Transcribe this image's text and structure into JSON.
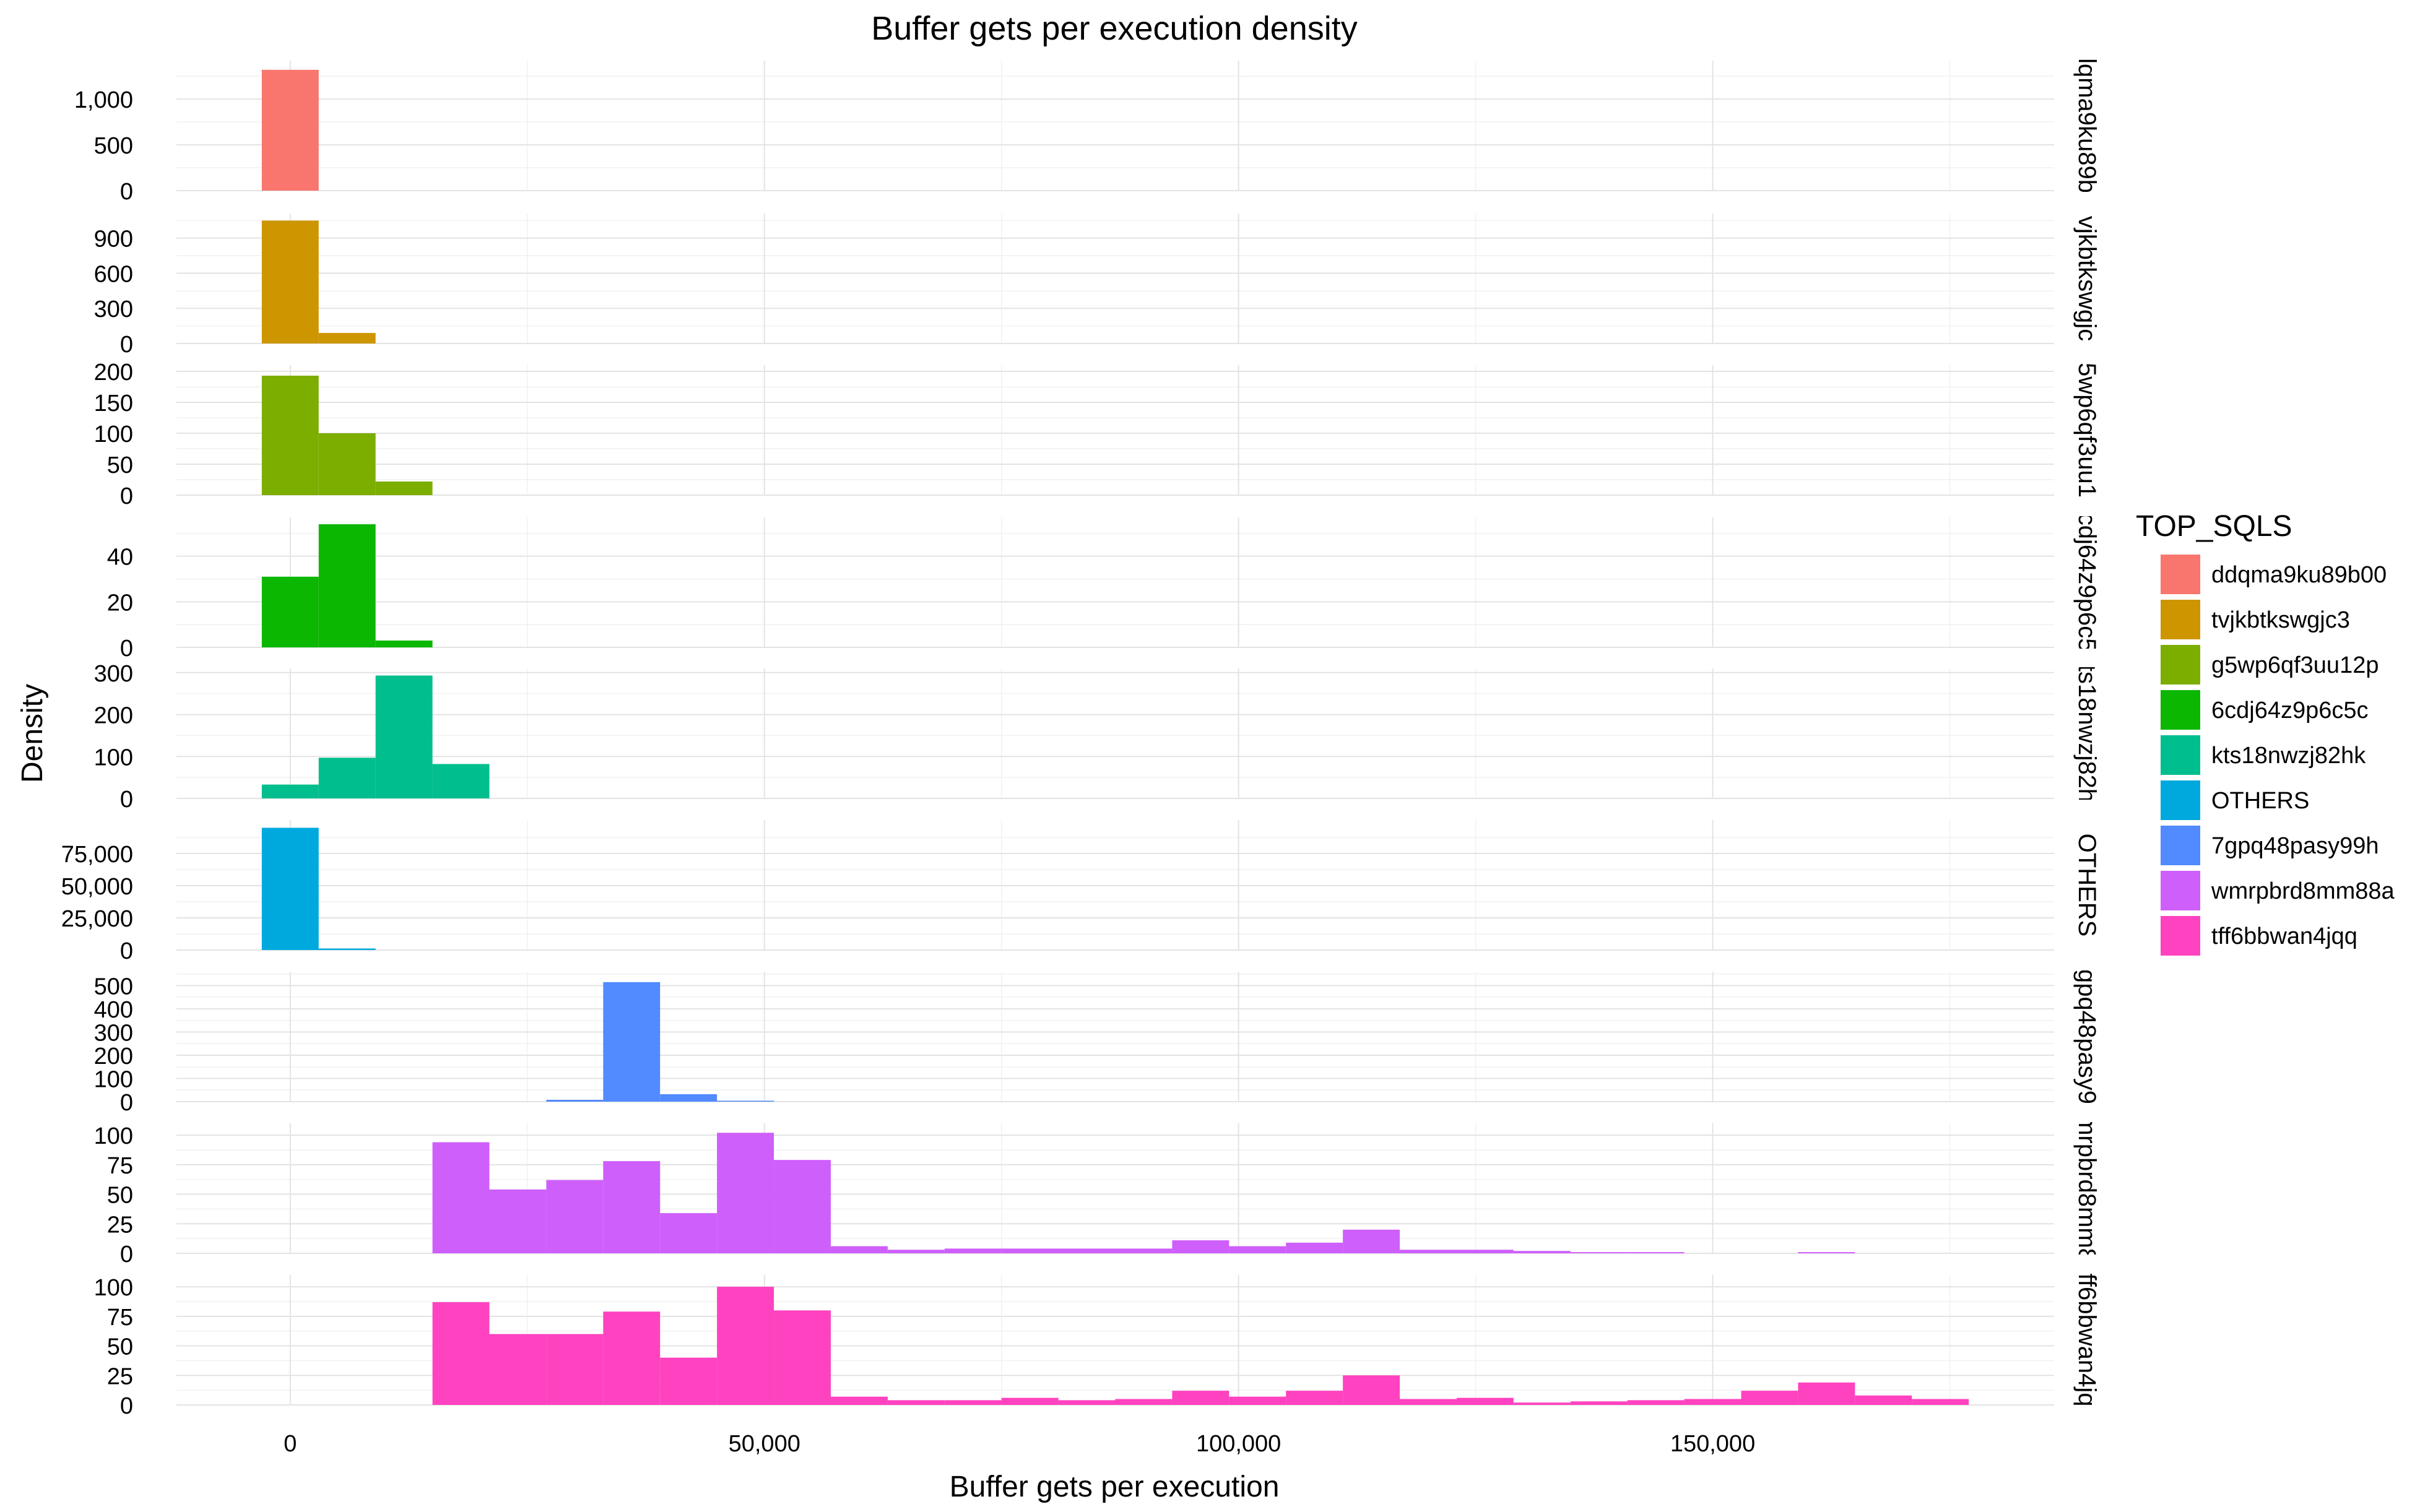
{
  "chart_data": {
    "type": "bar",
    "title": "Buffer gets per execution density",
    "xlabel": "Buffer gets per execution",
    "ylabel": "Density",
    "legend_title": "TOP_SQLS",
    "legend_position": "right",
    "grid": true,
    "bin_width": 6000,
    "x_range": [
      -12000,
      186000
    ],
    "x_ticks": [
      0,
      50000,
      100000,
      150000
    ],
    "x_tick_labels": [
      "0",
      "50,000",
      "100,000",
      "150,000"
    ],
    "series": [
      {
        "name": "ddqma9ku89b00",
        "strip_label": "lqma9ku89b",
        "color": "#F8766D",
        "ylim": [
          0,
          1420
        ],
        "y_ticks": [
          0,
          500,
          1000
        ],
        "y_tick_labels": [
          "0",
          "500",
          "1,000"
        ],
        "bins": [
          [
            -3000,
            1320
          ]
        ]
      },
      {
        "name": "tvjkbtkswgjc3",
        "strip_label": "vjkbtkswgjc",
        "color": "#CD9600",
        "ylim": [
          0,
          1110
        ],
        "y_ticks": [
          0,
          300,
          600,
          900
        ],
        "y_tick_labels": [
          "0",
          "300",
          "600",
          "900"
        ],
        "bins": [
          [
            -3000,
            1050
          ],
          [
            3000,
            90
          ]
        ]
      },
      {
        "name": "g5wp6qf3uu12p",
        "strip_label": "5wp6qf3uu1",
        "color": "#7CAE00",
        "ylim": [
          0,
          210
        ],
        "y_ticks": [
          0,
          50,
          100,
          150,
          200
        ],
        "y_tick_labels": [
          "0",
          "50",
          "100",
          "150",
          "200"
        ],
        "bins": [
          [
            -3000,
            193
          ],
          [
            3000,
            100
          ],
          [
            9000,
            22
          ]
        ]
      },
      {
        "name": "6cdj64z9p6c5c",
        "strip_label": "cdj64z9p6c5",
        "color": "#0CB702",
        "ylim": [
          0,
          57
        ],
        "y_ticks": [
          0,
          20,
          40
        ],
        "y_tick_labels": [
          "0",
          "20",
          "40"
        ],
        "bins": [
          [
            -3000,
            31
          ],
          [
            3000,
            54
          ],
          [
            9000,
            3
          ]
        ]
      },
      {
        "name": "kts18nwzj82hk",
        "strip_label": "ts18nwzj82h",
        "color": "#00BE8E",
        "ylim": [
          0,
          310
        ],
        "y_ticks": [
          0,
          100,
          200,
          300
        ],
        "y_tick_labels": [
          "0",
          "100",
          "200",
          "300"
        ],
        "bins": [
          [
            -3000,
            33
          ],
          [
            3000,
            97
          ],
          [
            9000,
            293
          ],
          [
            15000,
            82
          ]
        ]
      },
      {
        "name": "OTHERS",
        "strip_label": "OTHERS",
        "color": "#00A9DD",
        "ylim": [
          0,
          101000
        ],
        "y_ticks": [
          0,
          25000,
          50000,
          75000
        ],
        "y_tick_labels": [
          "0",
          "25,000",
          "50,000",
          "75,000"
        ],
        "bins": [
          [
            -3000,
            95000
          ],
          [
            3000,
            1200
          ]
        ]
      },
      {
        "name": "7gpq48pasy99h",
        "strip_label": "gpq48pasy9",
        "color": "#528AFF",
        "ylim": [
          0,
          560
        ],
        "y_ticks": [
          0,
          100,
          200,
          300,
          400,
          500
        ],
        "y_tick_labels": [
          "0",
          "100",
          "200",
          "300",
          "400",
          "500"
        ],
        "bins": [
          [
            27000,
            8
          ],
          [
            33000,
            515
          ],
          [
            39000,
            32
          ],
          [
            45000,
            4
          ]
        ]
      },
      {
        "name": "wmrpbrd8mm88a",
        "strip_label": "mrpbrd8mm8",
        "color": "#CE5FFB",
        "ylim": [
          0,
          110
        ],
        "y_ticks": [
          0,
          25,
          50,
          75,
          100
        ],
        "y_tick_labels": [
          "0",
          "25",
          "50",
          "75",
          "100"
        ],
        "bins": [
          [
            15000,
            94
          ],
          [
            21000,
            54
          ],
          [
            27000,
            62
          ],
          [
            33000,
            78
          ],
          [
            39000,
            34
          ],
          [
            45000,
            102
          ],
          [
            51000,
            79
          ],
          [
            57000,
            6
          ],
          [
            63000,
            3
          ],
          [
            69000,
            4
          ],
          [
            75000,
            4
          ],
          [
            81000,
            4
          ],
          [
            87000,
            4
          ],
          [
            93000,
            11
          ],
          [
            99000,
            6
          ],
          [
            105000,
            9
          ],
          [
            111000,
            20
          ],
          [
            117000,
            3
          ],
          [
            123000,
            3
          ],
          [
            129000,
            2
          ],
          [
            135000,
            1
          ],
          [
            141000,
            1
          ],
          [
            159000,
            1
          ]
        ]
      },
      {
        "name": "tff6bbwan4jqq",
        "strip_label": "ff6bbwan4jq",
        "color": "#FF42C0",
        "ylim": [
          0,
          110
        ],
        "y_ticks": [
          0,
          25,
          50,
          75,
          100
        ],
        "y_tick_labels": [
          "0",
          "25",
          "50",
          "75",
          "100"
        ],
        "bins": [
          [
            15000,
            87
          ],
          [
            21000,
            60
          ],
          [
            27000,
            60
          ],
          [
            33000,
            79
          ],
          [
            39000,
            40
          ],
          [
            45000,
            100
          ],
          [
            51000,
            80
          ],
          [
            57000,
            7
          ],
          [
            63000,
            4
          ],
          [
            69000,
            4
          ],
          [
            75000,
            6
          ],
          [
            81000,
            4
          ],
          [
            87000,
            5
          ],
          [
            93000,
            12
          ],
          [
            99000,
            7
          ],
          [
            105000,
            12
          ],
          [
            111000,
            25
          ],
          [
            117000,
            5
          ],
          [
            123000,
            6
          ],
          [
            129000,
            2
          ],
          [
            135000,
            3
          ],
          [
            141000,
            4
          ],
          [
            147000,
            5
          ],
          [
            153000,
            12
          ],
          [
            159000,
            19
          ],
          [
            165000,
            8
          ],
          [
            171000,
            5
          ]
        ]
      }
    ]
  }
}
